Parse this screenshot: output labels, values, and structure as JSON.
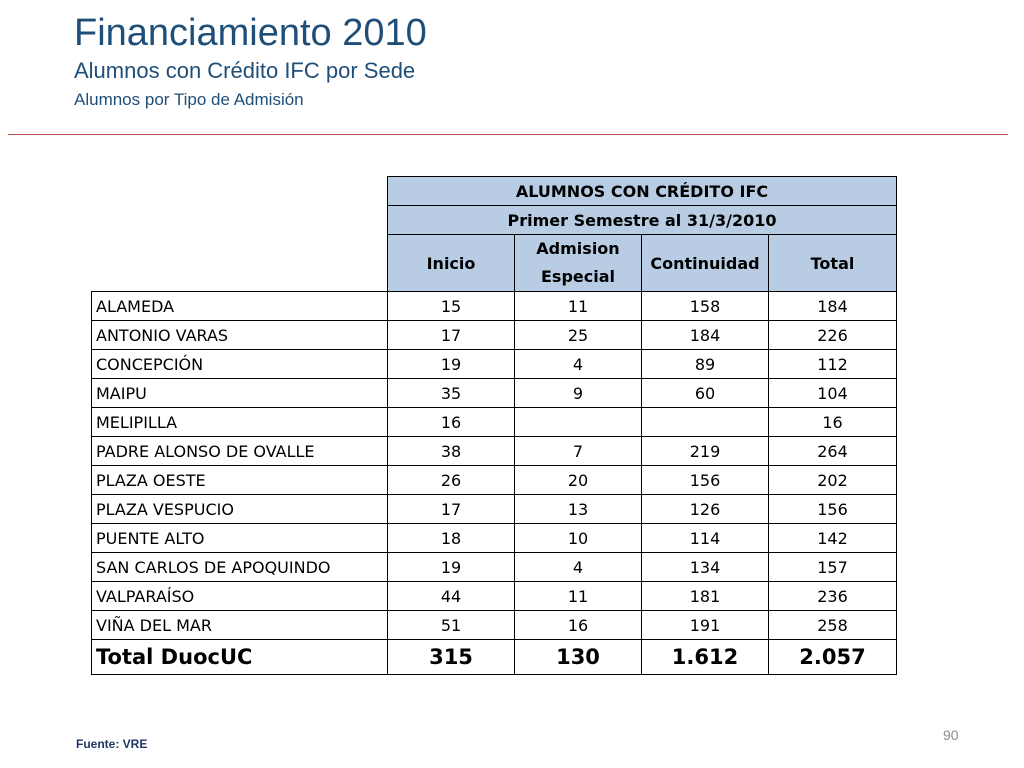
{
  "header": {
    "title": "Financiamiento 2010",
    "subtitle": "Alumnos con Crédito IFC por Sede",
    "subtitle2": "Alumnos por Tipo de Admisión"
  },
  "table": {
    "title": "ALUMNOS CON CRÉDITO IFC",
    "period": "Primer Semestre al 31/3/2010",
    "columns": [
      "Inicio",
      "Admision Especial",
      "Continuidad",
      "Total"
    ],
    "rows": [
      {
        "sede": "ALAMEDA",
        "inicio": "15",
        "admision": "11",
        "continuidad": "158",
        "total": "184"
      },
      {
        "sede": "ANTONIO VARAS",
        "inicio": "17",
        "admision": "25",
        "continuidad": "184",
        "total": "226"
      },
      {
        "sede": "CONCEPCIÓN",
        "inicio": "19",
        "admision": "4",
        "continuidad": "89",
        "total": "112"
      },
      {
        "sede": "MAIPU",
        "inicio": "35",
        "admision": "9",
        "continuidad": "60",
        "total": "104"
      },
      {
        "sede": "MELIPILLA",
        "inicio": "16",
        "admision": "",
        "continuidad": "",
        "total": "16"
      },
      {
        "sede": "PADRE ALONSO DE OVALLE",
        "inicio": "38",
        "admision": "7",
        "continuidad": "219",
        "total": "264"
      },
      {
        "sede": "PLAZA OESTE",
        "inicio": "26",
        "admision": "20",
        "continuidad": "156",
        "total": "202"
      },
      {
        "sede": "PLAZA VESPUCIO",
        "inicio": "17",
        "admision": "13",
        "continuidad": "126",
        "total": "156"
      },
      {
        "sede": "PUENTE ALTO",
        "inicio": "18",
        "admision": "10",
        "continuidad": "114",
        "total": "142"
      },
      {
        "sede": "SAN CARLOS DE APOQUINDO",
        "inicio": "19",
        "admision": "4",
        "continuidad": "134",
        "total": "157"
      },
      {
        "sede": "VALPARAÍSO",
        "inicio": "44",
        "admision": "11",
        "continuidad": "181",
        "total": "236"
      },
      {
        "sede": "VIÑA DEL MAR",
        "inicio": "51",
        "admision": "16",
        "continuidad": "191",
        "total": "258"
      }
    ],
    "total": {
      "label": "Total DuocUC",
      "inicio": "315",
      "admision": "130",
      "continuidad": "1.612",
      "total": "2.057"
    }
  },
  "footer": {
    "source": "Fuente: VRE",
    "page": "90"
  },
  "colors": {
    "title": "#1f4e79",
    "header_fill": "#b8cce4",
    "rule": "#c0504d"
  }
}
